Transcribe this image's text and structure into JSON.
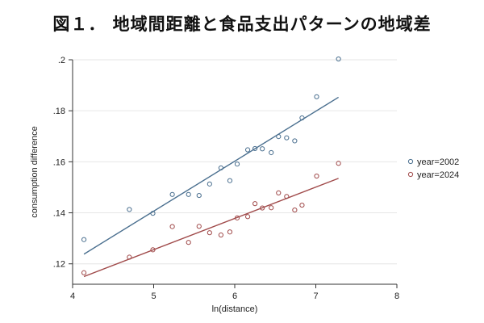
{
  "title": "図１． 地域間距離と食品支出パターンの地域差",
  "chart_data": {
    "type": "scatter",
    "xlabel": "ln(distance)",
    "ylabel": "consumption difference",
    "xlim": [
      4,
      8
    ],
    "ylim": [
      0.112,
      0.2
    ],
    "xticks": [
      4,
      5,
      6,
      7,
      8
    ],
    "xtick_labels": [
      "4",
      "5",
      "6",
      "7",
      "8"
    ],
    "yticks": [
      0.12,
      0.14,
      0.16,
      0.18,
      0.2
    ],
    "ytick_labels": [
      ".12",
      ".14",
      ".16",
      ".18",
      ".2"
    ],
    "grid": "horizontal",
    "legend": "right",
    "series": [
      {
        "name": "year=2002",
        "color": "#4a6f8f",
        "points": [
          [
            4.14,
            0.1295
          ],
          [
            4.7,
            0.1413
          ],
          [
            4.99,
            0.1398
          ],
          [
            5.23,
            0.1472
          ],
          [
            5.43,
            0.1472
          ],
          [
            5.56,
            0.1468
          ],
          [
            5.69,
            0.1513
          ],
          [
            5.83,
            0.1576
          ],
          [
            5.94,
            0.1526
          ],
          [
            6.03,
            0.1591
          ],
          [
            6.16,
            0.1647
          ],
          [
            6.25,
            0.1652
          ],
          [
            6.34,
            0.1651
          ],
          [
            6.45,
            0.1636
          ],
          [
            6.54,
            0.1699
          ],
          [
            6.64,
            0.1694
          ],
          [
            6.74,
            0.1682
          ],
          [
            6.83,
            0.1772
          ],
          [
            7.01,
            0.1855
          ],
          [
            7.28,
            0.2003
          ]
        ],
        "fit": [
          [
            4.14,
            0.1238
          ],
          [
            7.28,
            0.1853
          ]
        ]
      },
      {
        "name": "year=2024",
        "color": "#a04a4a",
        "points": [
          [
            4.14,
            0.1165
          ],
          [
            4.7,
            0.1226
          ],
          [
            4.99,
            0.1255
          ],
          [
            5.23,
            0.1346
          ],
          [
            5.43,
            0.1284
          ],
          [
            5.56,
            0.1347
          ],
          [
            5.69,
            0.1322
          ],
          [
            5.83,
            0.1313
          ],
          [
            5.94,
            0.1325
          ],
          [
            6.03,
            0.138
          ],
          [
            6.16,
            0.1385
          ],
          [
            6.25,
            0.1436
          ],
          [
            6.34,
            0.1419
          ],
          [
            6.45,
            0.142
          ],
          [
            6.54,
            0.1478
          ],
          [
            6.64,
            0.1464
          ],
          [
            6.74,
            0.1411
          ],
          [
            6.83,
            0.143
          ],
          [
            7.01,
            0.1544
          ],
          [
            7.28,
            0.1594
          ]
        ],
        "fit": [
          [
            4.14,
            0.115
          ],
          [
            7.28,
            0.1535
          ]
        ]
      }
    ]
  }
}
